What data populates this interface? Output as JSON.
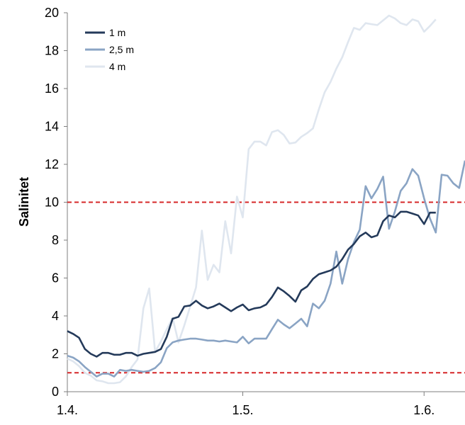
{
  "chart_data": {
    "type": "line",
    "ylabel": "Salinitet",
    "xlabel": "",
    "title": "",
    "ylim": [
      0,
      20
    ],
    "y_ticks": [
      0,
      2,
      4,
      6,
      8,
      10,
      12,
      14,
      16,
      18,
      20
    ],
    "x_ticks": [
      "1.4.",
      "1.5.",
      "1.6."
    ],
    "x_tick_positions_days": [
      0,
      30,
      61
    ],
    "x_range_days": [
      0,
      68
    ],
    "legend_position": "top-left",
    "grid": false,
    "reference_lines": [
      {
        "y": 10,
        "color": "#d62728",
        "style": "dashed"
      },
      {
        "y": 1,
        "color": "#d62728",
        "style": "dashed"
      }
    ],
    "series": [
      {
        "name": "1 m",
        "color": "#243a5a",
        "x": [
          0,
          1,
          2,
          3,
          4,
          5,
          6,
          7,
          8,
          9,
          10,
          11,
          12,
          13,
          14,
          15,
          16,
          17,
          18,
          19,
          20,
          21,
          22,
          23,
          24,
          25,
          26,
          27,
          28,
          29,
          30,
          31,
          32,
          33,
          34,
          35,
          36,
          37,
          38,
          39,
          40,
          41,
          42,
          43,
          44,
          45,
          46,
          47,
          48,
          49,
          50,
          51,
          52,
          53,
          54,
          55,
          56,
          57,
          58,
          59,
          60,
          61,
          62,
          63
        ],
        "values": [
          3.2,
          3.05,
          2.85,
          2.25,
          2.0,
          1.85,
          2.05,
          2.05,
          1.95,
          1.95,
          2.05,
          2.05,
          1.9,
          2.0,
          2.05,
          2.1,
          2.25,
          2.9,
          3.85,
          3.95,
          4.5,
          4.55,
          4.8,
          4.55,
          4.4,
          4.5,
          4.65,
          4.45,
          4.25,
          4.45,
          4.6,
          4.3,
          4.4,
          4.45,
          4.6,
          5.0,
          5.5,
          5.3,
          5.05,
          4.75,
          5.35,
          5.55,
          5.95,
          6.2,
          6.3,
          6.4,
          6.6,
          7.0,
          7.5,
          7.8,
          8.2,
          8.4,
          8.15,
          8.25,
          9.0,
          9.3,
          9.2,
          9.5,
          9.5,
          9.4,
          9.3,
          8.85,
          9.45,
          9.45
        ]
      },
      {
        "name": "2,5 m",
        "color": "#8aa4c4",
        "x": [
          0,
          1,
          2,
          3,
          4,
          5,
          6,
          7,
          8,
          9,
          10,
          11,
          12,
          13,
          14,
          15,
          16,
          17,
          18,
          19,
          20,
          21,
          22,
          23,
          24,
          25,
          26,
          27,
          28,
          29,
          30,
          31,
          32,
          33,
          34,
          35,
          36,
          37,
          38,
          39,
          40,
          41,
          42,
          43,
          44,
          45,
          46,
          47,
          48,
          49,
          50,
          51,
          52,
          53,
          54,
          55,
          56,
          57,
          58,
          59,
          60,
          61,
          62,
          63,
          64,
          65,
          66,
          67,
          68
        ],
        "values": [
          1.9,
          1.8,
          1.6,
          1.3,
          1.05,
          0.8,
          0.95,
          0.95,
          0.8,
          1.15,
          1.1,
          1.15,
          1.1,
          1.05,
          1.1,
          1.25,
          1.55,
          2.3,
          2.6,
          2.7,
          2.75,
          2.8,
          2.8,
          2.75,
          2.7,
          2.7,
          2.65,
          2.7,
          2.65,
          2.6,
          2.9,
          2.55,
          2.8,
          2.8,
          2.8,
          3.3,
          3.8,
          3.55,
          3.35,
          3.6,
          3.85,
          3.45,
          4.65,
          4.4,
          4.8,
          5.7,
          7.4,
          5.7,
          7.0,
          7.9,
          8.55,
          10.85,
          10.2,
          10.7,
          11.35,
          8.6,
          9.5,
          10.6,
          11.0,
          11.75,
          11.4,
          10.2,
          9.15,
          8.4,
          11.45,
          11.4,
          11.0,
          10.75,
          12.2
        ]
      },
      {
        "name": "4 m",
        "color": "#dfe6ef",
        "x": [
          0,
          1,
          2,
          3,
          4,
          5,
          6,
          7,
          8,
          9,
          10,
          11,
          12,
          13,
          14,
          15,
          16,
          17,
          18,
          19,
          20,
          21,
          22,
          23,
          24,
          25,
          26,
          27,
          28,
          29,
          30,
          31,
          32,
          33,
          34,
          35,
          36,
          37,
          38,
          39,
          40,
          41,
          42,
          43,
          44,
          45,
          46,
          47,
          48,
          49,
          50,
          51,
          52,
          53,
          54,
          55,
          56,
          57,
          58,
          59,
          60,
          61,
          62,
          63
        ],
        "values": [
          1.75,
          1.6,
          1.35,
          1.0,
          0.85,
          0.6,
          0.55,
          0.45,
          0.45,
          0.5,
          0.8,
          1.3,
          1.7,
          4.4,
          5.45,
          2.1,
          2.65,
          3.3,
          3.9,
          2.6,
          3.5,
          4.5,
          5.5,
          8.5,
          5.9,
          6.7,
          6.3,
          9.0,
          7.3,
          10.3,
          9.2,
          12.8,
          13.2,
          13.2,
          13.0,
          13.7,
          13.8,
          13.55,
          13.1,
          13.15,
          13.45,
          13.65,
          13.9,
          14.9,
          15.8,
          16.35,
          17.05,
          17.65,
          18.45,
          19.2,
          19.1,
          19.45,
          19.4,
          19.35,
          19.6,
          19.85,
          19.7,
          19.45,
          19.35,
          19.65,
          19.55,
          19.0,
          19.3,
          19.65
        ]
      }
    ]
  }
}
